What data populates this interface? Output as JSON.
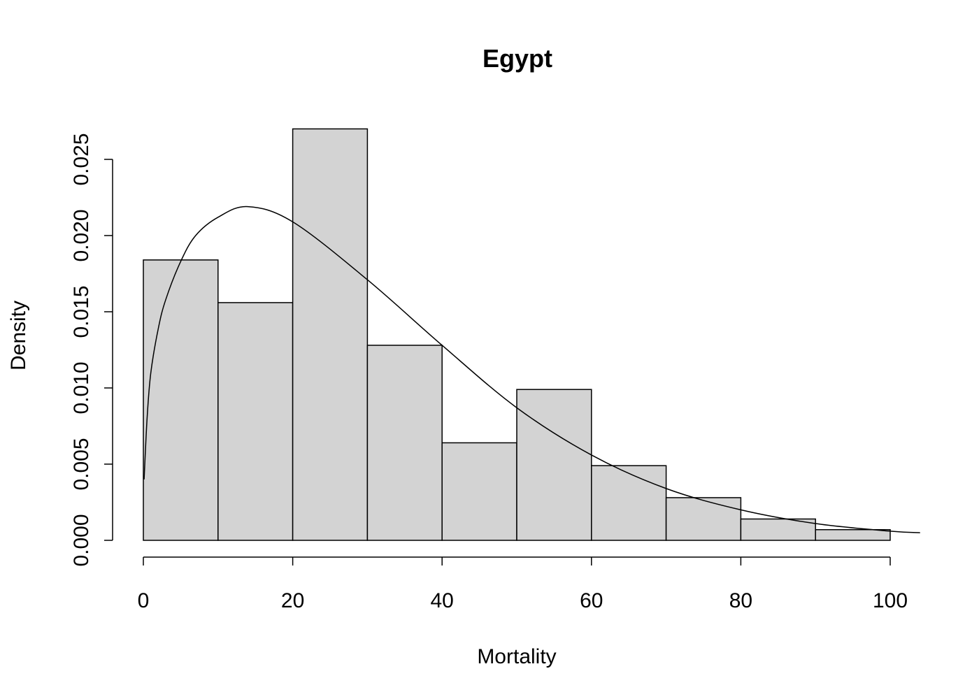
{
  "chart_data": {
    "type": "bar",
    "subtype": "histogram",
    "title": "Egypt",
    "xlabel": "Mortality",
    "ylabel": "Density",
    "xlim": [
      0,
      100
    ],
    "ylim": [
      0,
      0.027
    ],
    "x_ticks": [
      "0",
      "20",
      "40",
      "60",
      "80",
      "100"
    ],
    "y_ticks": [
      "0.000",
      "0.005",
      "0.010",
      "0.015",
      "0.020",
      "0.025"
    ],
    "bins": [
      [
        0,
        10
      ],
      [
        10,
        20
      ],
      [
        20,
        30
      ],
      [
        30,
        40
      ],
      [
        40,
        50
      ],
      [
        50,
        60
      ],
      [
        60,
        70
      ],
      [
        70,
        80
      ],
      [
        80,
        90
      ],
      [
        90,
        100
      ]
    ],
    "values": [
      0.0184,
      0.0156,
      0.027,
      0.0128,
      0.0064,
      0.0099,
      0.0049,
      0.0028,
      0.0014,
      0.0007
    ],
    "bar_color": "#d3d3d3",
    "grid": false,
    "density_curve": {
      "x": [
        0.1,
        0.5,
        1,
        2,
        3,
        5,
        7,
        10,
        14,
        20,
        30,
        40,
        50,
        60,
        70,
        80,
        90,
        100,
        104
      ],
      "y": [
        0.004,
        0.008,
        0.011,
        0.0139,
        0.0158,
        0.0183,
        0.02,
        0.0212,
        0.0219,
        0.0209,
        0.0171,
        0.0128,
        0.0087,
        0.0056,
        0.0034,
        0.002,
        0.0011,
        0.0006,
        0.0005
      ]
    }
  }
}
